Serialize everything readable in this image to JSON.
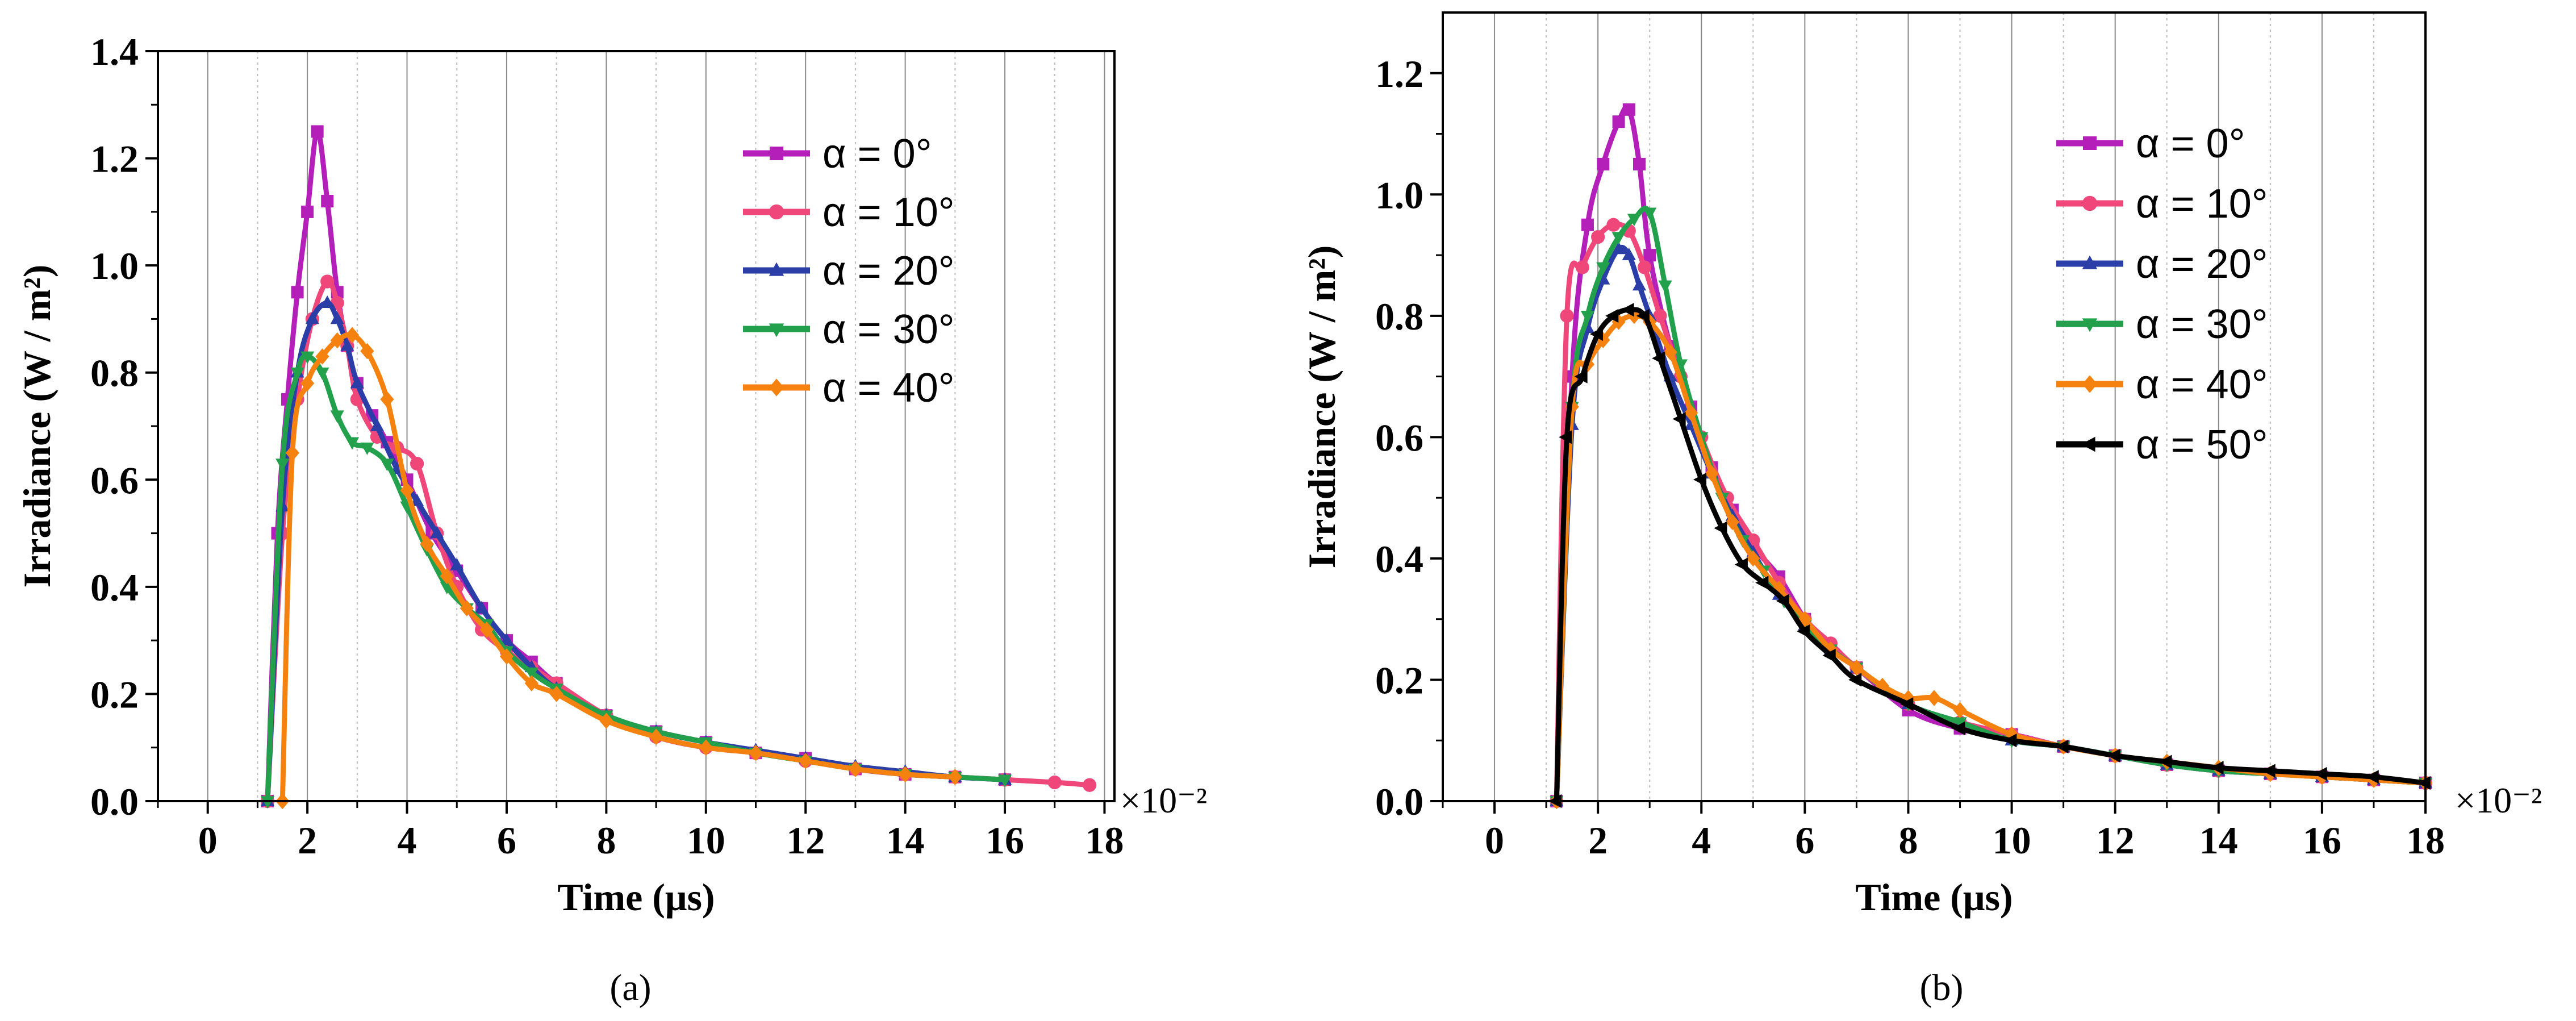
{
  "chart_data": [
    {
      "type": "line",
      "panel_label": "(a)",
      "xlabel": "Time (μs)",
      "ylabel": "Irradiance (W / m²)",
      "xlim": [
        -1,
        18.2
      ],
      "ylim": [
        0,
        1.4
      ],
      "x_ticks": [
        0,
        2,
        4,
        6,
        8,
        10,
        12,
        14,
        16,
        18
      ],
      "y_ticks": [
        0.0,
        0.2,
        0.4,
        0.6,
        0.8,
        1.0,
        1.2,
        1.4
      ],
      "x_multiplier": "×10⁻²",
      "grid": "vertical",
      "legend_position": "top-right",
      "series": [
        {
          "name": "α = 0°",
          "color": "#b31fb8",
          "marker": "square",
          "x": [
            1.2,
            1.4,
            1.6,
            1.8,
            2.0,
            2.2,
            2.4,
            2.6,
            2.8,
            3.0,
            3.3,
            3.6,
            4.0,
            4.5,
            5.0,
            5.5,
            6.0,
            6.5,
            7.0,
            8.0,
            9.0,
            10.0,
            11.0,
            12.0,
            13.0,
            14.0,
            15.0,
            16.0
          ],
          "y": [
            0.0,
            0.5,
            0.75,
            0.95,
            1.1,
            1.25,
            1.12,
            0.95,
            0.85,
            0.78,
            0.72,
            0.67,
            0.6,
            0.5,
            0.43,
            0.36,
            0.3,
            0.26,
            0.22,
            0.16,
            0.13,
            0.11,
            0.09,
            0.08,
            0.06,
            0.05,
            0.045,
            0.04
          ]
        },
        {
          "name": "α = 10°",
          "color": "#f0477a",
          "marker": "circle",
          "x": [
            1.2,
            1.5,
            1.8,
            2.1,
            2.4,
            2.6,
            2.8,
            3.0,
            3.4,
            3.8,
            4.2,
            4.6,
            5.0,
            5.5,
            6.0,
            6.5,
            7.0,
            8.0,
            9.0,
            10.0,
            11.0,
            12.0,
            13.0,
            14.0,
            15.0,
            16.0,
            17.0,
            17.7
          ],
          "y": [
            0.0,
            0.5,
            0.75,
            0.9,
            0.97,
            0.93,
            0.85,
            0.75,
            0.68,
            0.66,
            0.63,
            0.5,
            0.4,
            0.32,
            0.28,
            0.25,
            0.22,
            0.16,
            0.12,
            0.1,
            0.09,
            0.075,
            0.06,
            0.05,
            0.045,
            0.04,
            0.035,
            0.03
          ]
        },
        {
          "name": "α = 20°",
          "color": "#2b3ea8",
          "marker": "triangle-up",
          "x": [
            1.2,
            1.5,
            1.8,
            2.1,
            2.4,
            2.6,
            2.8,
            3.0,
            3.4,
            3.8,
            4.2,
            4.6,
            5.0,
            5.5,
            6.0,
            6.5,
            7.0,
            8.0,
            9.0,
            10.0,
            11.0,
            12.0,
            13.0,
            14.0,
            15.0,
            16.0
          ],
          "y": [
            0.0,
            0.55,
            0.8,
            0.9,
            0.93,
            0.9,
            0.85,
            0.78,
            0.7,
            0.62,
            0.56,
            0.5,
            0.44,
            0.36,
            0.3,
            0.25,
            0.21,
            0.16,
            0.13,
            0.11,
            0.095,
            0.08,
            0.065,
            0.055,
            0.045,
            0.04
          ]
        },
        {
          "name": "α = 30°",
          "color": "#22a04b",
          "marker": "triangle-down",
          "x": [
            1.2,
            1.5,
            1.8,
            2.0,
            2.3,
            2.6,
            2.9,
            3.2,
            3.6,
            4.0,
            4.4,
            4.8,
            5.2,
            5.6,
            6.0,
            6.5,
            7.0,
            8.0,
            9.0,
            10.0,
            11.0,
            12.0,
            13.0,
            14.0,
            15.0,
            16.0
          ],
          "y": [
            0.0,
            0.63,
            0.8,
            0.83,
            0.8,
            0.72,
            0.67,
            0.66,
            0.63,
            0.55,
            0.47,
            0.4,
            0.36,
            0.33,
            0.28,
            0.24,
            0.21,
            0.16,
            0.13,
            0.11,
            0.09,
            0.075,
            0.06,
            0.05,
            0.045,
            0.04
          ]
        },
        {
          "name": "α = 40°",
          "color": "#f5820f",
          "marker": "diamond",
          "x": [
            1.5,
            1.7,
            2.0,
            2.3,
            2.6,
            2.9,
            3.2,
            3.6,
            4.0,
            4.4,
            4.8,
            5.2,
            5.6,
            6.0,
            6.5,
            7.0,
            8.0,
            9.0,
            10.0,
            11.0,
            12.0,
            13.0,
            14.0,
            15.0
          ],
          "y": [
            0.0,
            0.65,
            0.78,
            0.83,
            0.86,
            0.87,
            0.84,
            0.75,
            0.58,
            0.48,
            0.42,
            0.36,
            0.32,
            0.27,
            0.22,
            0.2,
            0.15,
            0.12,
            0.1,
            0.09,
            0.075,
            0.06,
            0.05,
            0.045
          ]
        }
      ]
    },
    {
      "type": "line",
      "panel_label": "(b)",
      "xlabel": "Time (μs)",
      "ylabel": "Irradiance (W / m²)",
      "xlim": [
        -1,
        18
      ],
      "ylim": [
        0,
        1.3
      ],
      "x_ticks": [
        0,
        2,
        4,
        6,
        8,
        10,
        12,
        14,
        16,
        18
      ],
      "y_ticks": [
        0.0,
        0.2,
        0.4,
        0.6,
        0.8,
        1.0,
        1.2
      ],
      "x_multiplier": "×10⁻²",
      "grid": "vertical",
      "legend_position": "top-right",
      "series": [
        {
          "name": "α = 0°",
          "color": "#b31fb8",
          "marker": "square",
          "x": [
            1.2,
            1.5,
            1.8,
            2.1,
            2.4,
            2.6,
            2.8,
            3.0,
            3.4,
            3.8,
            4.2,
            4.6,
            5.0,
            5.5,
            6.0,
            6.5,
            7.0,
            8.0,
            9.0,
            10.0,
            11.0,
            12.0,
            13.0,
            14.0,
            15.0,
            16.0,
            17.0,
            18.0
          ],
          "y": [
            0.0,
            0.7,
            0.95,
            1.05,
            1.12,
            1.14,
            1.05,
            0.9,
            0.75,
            0.65,
            0.55,
            0.48,
            0.42,
            0.37,
            0.3,
            0.25,
            0.22,
            0.15,
            0.12,
            0.11,
            0.09,
            0.075,
            0.06,
            0.05,
            0.045,
            0.04,
            0.035,
            0.03
          ]
        },
        {
          "name": "α = 10°",
          "color": "#f0477a",
          "marker": "circle",
          "x": [
            1.2,
            1.4,
            1.7,
            2.0,
            2.3,
            2.6,
            2.9,
            3.2,
            3.6,
            4.0,
            4.5,
            5.0,
            5.5,
            6.0,
            6.5,
            7.0,
            8.0,
            9.0,
            10.0,
            11.0,
            12.0,
            13.0,
            14.0,
            15.0,
            16.0,
            17.0,
            18.0
          ],
          "y": [
            0.0,
            0.8,
            0.88,
            0.93,
            0.95,
            0.94,
            0.88,
            0.8,
            0.7,
            0.6,
            0.5,
            0.43,
            0.36,
            0.3,
            0.26,
            0.22,
            0.16,
            0.13,
            0.11,
            0.09,
            0.075,
            0.06,
            0.05,
            0.045,
            0.04,
            0.035,
            0.03
          ]
        },
        {
          "name": "α = 20°",
          "color": "#2b3ea8",
          "marker": "triangle-up",
          "x": [
            1.2,
            1.5,
            1.8,
            2.1,
            2.4,
            2.6,
            2.8,
            3.0,
            3.4,
            3.8,
            4.2,
            4.6,
            5.0,
            5.5,
            6.0,
            6.5,
            7.0,
            8.0,
            9.0,
            10.0,
            11.0,
            12.0,
            13.0,
            14.0,
            15.0,
            16.0,
            17.0,
            18.0
          ],
          "y": [
            0.0,
            0.62,
            0.78,
            0.86,
            0.91,
            0.9,
            0.85,
            0.8,
            0.7,
            0.62,
            0.54,
            0.47,
            0.41,
            0.34,
            0.29,
            0.25,
            0.22,
            0.16,
            0.13,
            0.1,
            0.09,
            0.075,
            0.06,
            0.05,
            0.045,
            0.04,
            0.035,
            0.03
          ]
        },
        {
          "name": "α = 30°",
          "color": "#22a04b",
          "marker": "triangle-down",
          "x": [
            1.2,
            1.5,
            1.8,
            2.1,
            2.4,
            2.7,
            3.0,
            3.3,
            3.6,
            4.0,
            4.4,
            4.8,
            5.2,
            5.6,
            6.0,
            6.5,
            7.0,
            8.0,
            9.0,
            10.0,
            11.0,
            12.0,
            13.0,
            14.0,
            15.0,
            16.0,
            17.0,
            18.0
          ],
          "y": [
            0.0,
            0.65,
            0.8,
            0.88,
            0.93,
            0.96,
            0.97,
            0.85,
            0.72,
            0.6,
            0.5,
            0.43,
            0.38,
            0.33,
            0.29,
            0.25,
            0.22,
            0.16,
            0.13,
            0.1,
            0.09,
            0.075,
            0.06,
            0.05,
            0.045,
            0.04,
            0.035,
            0.03
          ]
        },
        {
          "name": "α = 40°",
          "color": "#f5820f",
          "marker": "diamond",
          "x": [
            1.2,
            1.5,
            1.8,
            2.1,
            2.4,
            2.7,
            3.0,
            3.4,
            3.8,
            4.2,
            4.6,
            5.0,
            5.5,
            6.0,
            6.5,
            7.0,
            7.5,
            8.0,
            8.5,
            9.0,
            10.0,
            11.0,
            12.0,
            13.0,
            14.0,
            15.0,
            16.0,
            17.0,
            18.0
          ],
          "y": [
            0.0,
            0.65,
            0.72,
            0.76,
            0.79,
            0.8,
            0.79,
            0.74,
            0.64,
            0.54,
            0.46,
            0.4,
            0.35,
            0.3,
            0.25,
            0.22,
            0.19,
            0.17,
            0.17,
            0.15,
            0.11,
            0.09,
            0.075,
            0.065,
            0.055,
            0.045,
            0.04,
            0.035,
            0.03
          ]
        },
        {
          "name": "α = 50°",
          "color": "#000000",
          "marker": "triangle-left",
          "x": [
            1.2,
            1.4,
            1.7,
            2.0,
            2.3,
            2.6,
            2.9,
            3.2,
            3.6,
            4.0,
            4.4,
            4.8,
            5.2,
            5.6,
            6.0,
            6.5,
            7.0,
            8.0,
            9.0,
            10.0,
            11.0,
            12.0,
            13.0,
            14.0,
            15.0,
            16.0,
            17.0,
            18.0
          ],
          "y": [
            0.0,
            0.6,
            0.7,
            0.77,
            0.8,
            0.81,
            0.8,
            0.73,
            0.63,
            0.53,
            0.45,
            0.39,
            0.36,
            0.33,
            0.28,
            0.24,
            0.2,
            0.16,
            0.12,
            0.1,
            0.09,
            0.075,
            0.065,
            0.055,
            0.05,
            0.045,
            0.04,
            0.03
          ]
        }
      ]
    }
  ]
}
